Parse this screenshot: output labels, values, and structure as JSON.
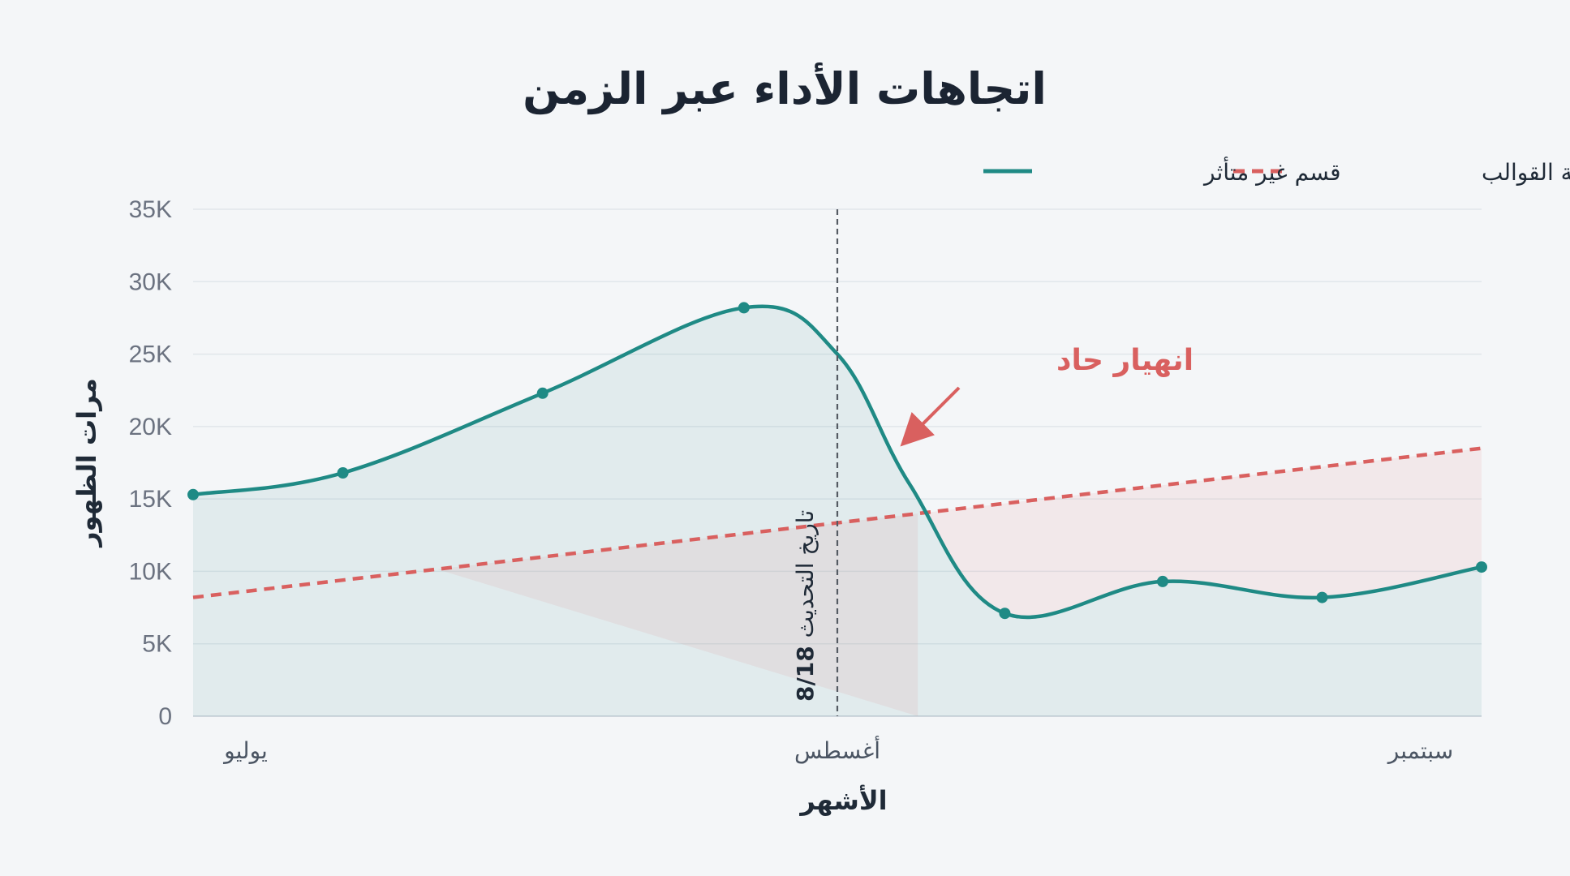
{
  "chart_data": {
    "type": "line",
    "title": "اتجاهات الأداء عبر الزمن",
    "xlabel": "الأشهر",
    "ylabel": "مرات الظهور",
    "ylim": [
      0,
      35000
    ],
    "yticks": [
      {
        "value": 0,
        "label": "0"
      },
      {
        "value": 5000,
        "label": "5K"
      },
      {
        "value": 10000,
        "label": "10K"
      },
      {
        "value": 15000,
        "label": "15K"
      },
      {
        "value": 20000,
        "label": "20K"
      },
      {
        "value": 25000,
        "label": "25K"
      },
      {
        "value": 30000,
        "label": "30K"
      },
      {
        "value": 35000,
        "label": "35K"
      }
    ],
    "xlim": [
      0,
      8
    ],
    "xticks": [
      {
        "value": 0,
        "label": "يوليو"
      },
      {
        "value": 4,
        "label": "أغسطس"
      },
      {
        "value": 8,
        "label": "سبتمبر"
      }
    ],
    "grid": true,
    "legend_position": "top-right",
    "series": [
      {
        "name": "قسم غير متأثر",
        "color": "#1f8a85",
        "style": "solid",
        "points": [
          {
            "x": 0,
            "y": 15300,
            "marker": true
          },
          {
            "x": 0.93,
            "y": 16800,
            "marker": true
          },
          {
            "x": 2.17,
            "y": 22300,
            "marker": true
          },
          {
            "x": 3.42,
            "y": 28200,
            "marker": true
          },
          {
            "x": 4.0,
            "y": 25000,
            "marker": false
          },
          {
            "x": 4.45,
            "y": 16000,
            "marker": false
          },
          {
            "x": 5.04,
            "y": 7100,
            "marker": true
          },
          {
            "x": 6.02,
            "y": 9300,
            "marker": true
          },
          {
            "x": 7.01,
            "y": 8200,
            "marker": true
          },
          {
            "x": 8.0,
            "y": 10300,
            "marker": true
          }
        ]
      },
      {
        "name": "مجموعة القوالب",
        "color": "#d9605f",
        "style": "dashed",
        "points": [
          {
            "x": 0,
            "y": 8200
          },
          {
            "x": 8,
            "y": 18500
          }
        ]
      }
    ],
    "reference_line": {
      "x": 4.0,
      "label_bold": "8/18",
      "label": "تاريخ التحديث"
    },
    "annotation": {
      "text": "انهيار حاد",
      "color": "#d9605f"
    }
  }
}
